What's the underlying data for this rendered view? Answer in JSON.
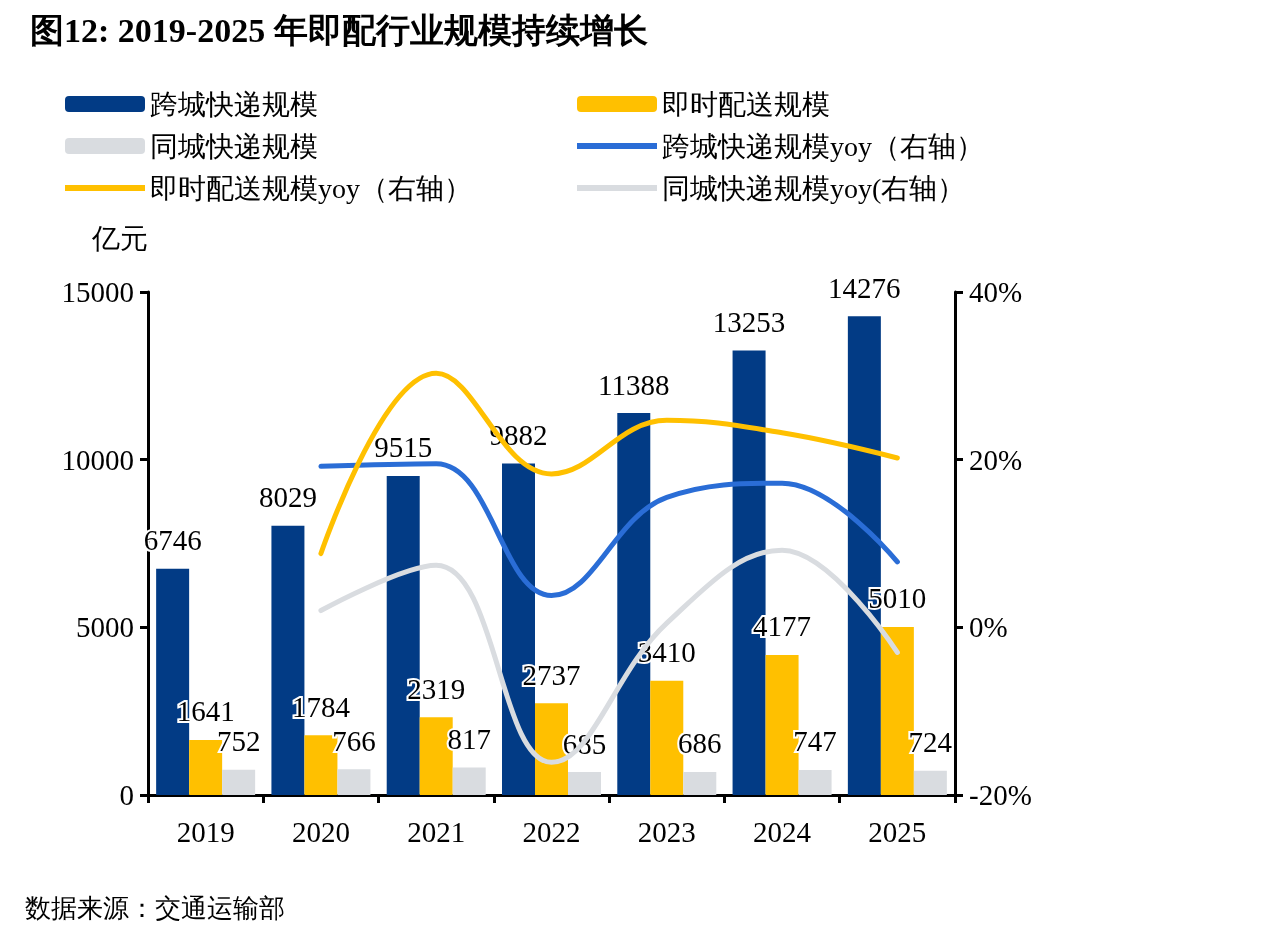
{
  "chart_data": {
    "type": "bar",
    "title": "图12: 2019-2025 年即配行业规模持续增长",
    "ylabel": "亿元",
    "categories": [
      "2019",
      "2020",
      "2021",
      "2022",
      "2023",
      "2024",
      "2025"
    ],
    "series": [
      {
        "name": "跨城快递规模",
        "color": "#023b85",
        "values": [
          6746,
          8029,
          9515,
          9882,
          11388,
          13253,
          14276
        ],
        "value_labels": [
          "6746",
          "8029",
          "9515",
          "9882",
          "11388",
          "13253",
          "14276"
        ]
      },
      {
        "name": "即时配送规模",
        "color": "#ffc000",
        "values": [
          1641,
          1784,
          2319,
          2737,
          3410,
          4177,
          5010
        ],
        "value_labels": [
          "1641",
          "1784",
          "2319",
          "2737",
          "3410",
          "4177",
          "5010"
        ]
      },
      {
        "name": "同城快递规模",
        "color": "#d9dce0",
        "values": [
          752,
          766,
          817,
          685,
          686,
          747,
          724
        ],
        "value_labels": [
          "752",
          "766",
          "817",
          "685",
          "686",
          "747",
          "724"
        ]
      },
      {
        "name": "跨城快递规模yoy（右轴）",
        "type": "line",
        "axis": "y2",
        "color": "#2a6dd6",
        "values": [
          null,
          19.2,
          19.5,
          3.8,
          15.5,
          17.2,
          7.8
        ]
      },
      {
        "name": "即时配送规模yoy（右轴）",
        "type": "line",
        "axis": "y2",
        "color": "#ffc000",
        "values": [
          null,
          8.8,
          30.3,
          18.3,
          24.7,
          23.2,
          20.2
        ]
      },
      {
        "name": "同城快递规模yoy(右轴）",
        "type": "line",
        "axis": "y2",
        "color": "#d9dce0",
        "values": [
          null,
          2.0,
          7.4,
          -16.1,
          0.5,
          9.2,
          -3.0
        ]
      }
    ],
    "ylim": [
      0,
      15000
    ],
    "yticks": [
      0,
      5000,
      10000,
      15000
    ],
    "y2lim": [
      -20,
      40
    ],
    "y2ticks": [
      {
        "value": -20,
        "label": "-20%"
      },
      {
        "value": 0,
        "label": "0%"
      },
      {
        "value": 20,
        "label": "20%"
      },
      {
        "value": 40,
        "label": "40%"
      }
    ],
    "grid": false,
    "legend": "top left",
    "marker": "none",
    "annotations": [
      "数据来源：交通运输部"
    ]
  }
}
